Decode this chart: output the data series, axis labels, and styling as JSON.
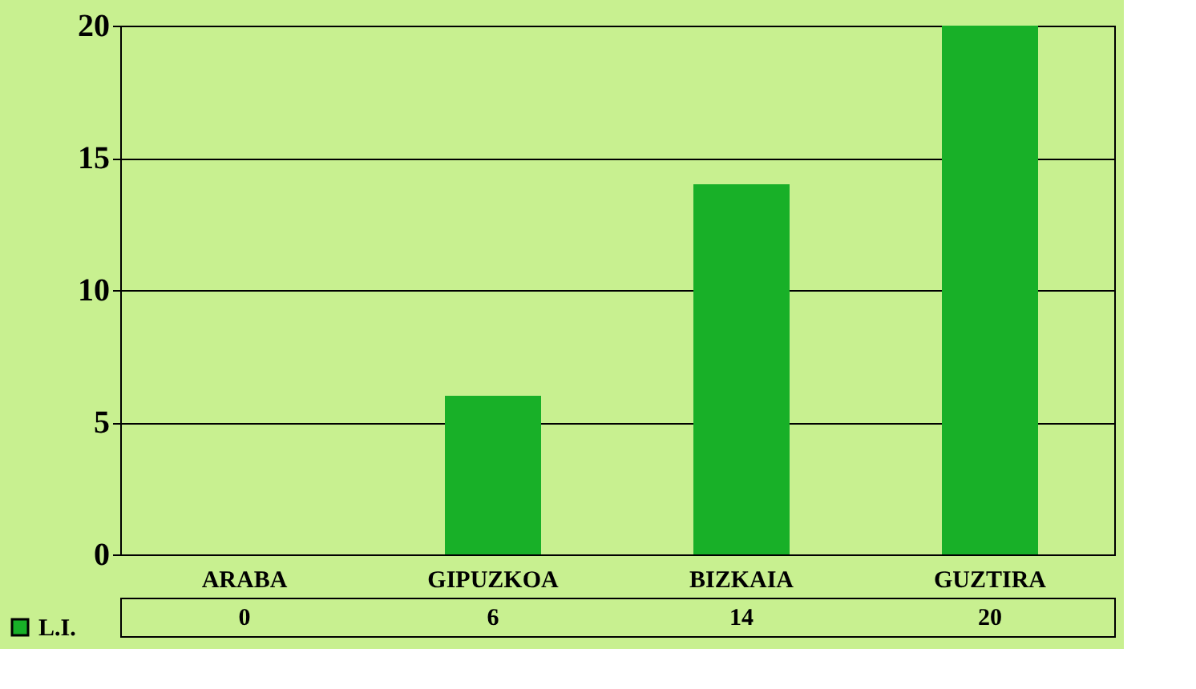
{
  "chart_data": {
    "type": "bar",
    "categories": [
      "ARABA",
      "GIPUZKOA",
      "BIZKAIA",
      "GUZTIRA"
    ],
    "series": [
      {
        "name": "L.I.",
        "color": "#18b028",
        "values": [
          0,
          6,
          14,
          20
        ]
      }
    ],
    "ylim": [
      0,
      20
    ],
    "yticks": [
      0,
      5,
      10,
      15,
      20
    ],
    "grid": "y",
    "data_labels": true,
    "legend": "bottom left"
  }
}
